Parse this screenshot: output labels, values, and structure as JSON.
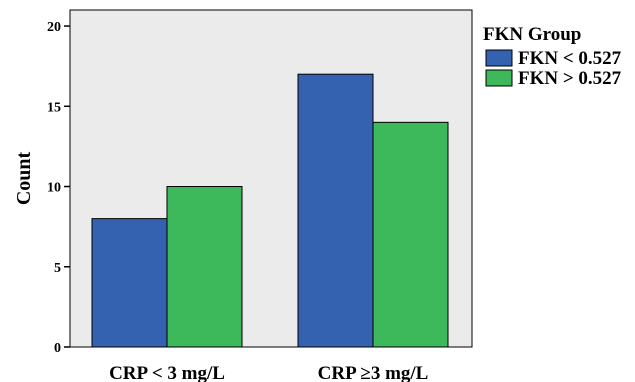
{
  "chart_data": {
    "type": "bar",
    "categories": [
      "CRP < 3 mg/L",
      "CRP ≥3 mg/L"
    ],
    "series": [
      {
        "name": "FKN < 0.527",
        "values": [
          8,
          17
        ],
        "color": "#3461B0"
      },
      {
        "name": "FKN > 0.527",
        "values": [
          10,
          14
        ],
        "color": "#3DB85A"
      }
    ],
    "xlabel": "",
    "ylabel": "Count",
    "ylim": [
      0,
      20
    ],
    "yticks": [
      0,
      5,
      10,
      15,
      20
    ],
    "grid": false,
    "plot_background": "#EBEBEB",
    "legend": {
      "title": "FKN Group",
      "placement": "top-right"
    }
  }
}
